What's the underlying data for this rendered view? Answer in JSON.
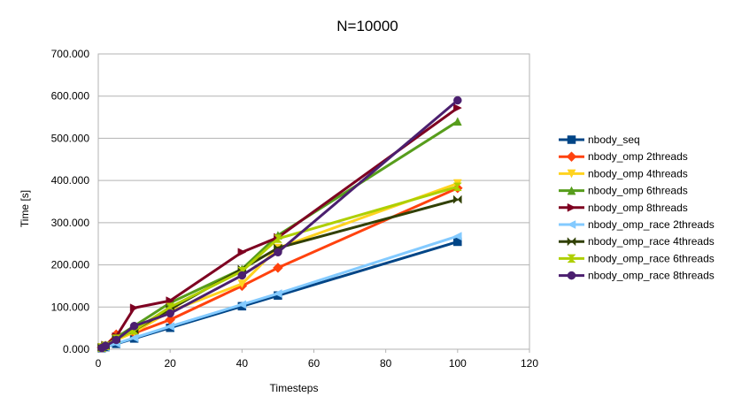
{
  "chart_data": {
    "type": "line",
    "title": "N=10000",
    "xlabel": "Timesteps",
    "ylabel": "Time [s]",
    "xlim": [
      0,
      120
    ],
    "ylim": [
      0,
      700
    ],
    "x_ticks": [
      "0",
      "20",
      "40",
      "60",
      "80",
      "100",
      "120"
    ],
    "y_ticks": [
      "0.000",
      "100.000",
      "200.000",
      "300.000",
      "400.000",
      "500.000",
      "600.000",
      "700.000"
    ],
    "grid": "horizontal",
    "legend_position": "right",
    "x": [
      1,
      2,
      5,
      10,
      20,
      40,
      50,
      100
    ],
    "series": [
      {
        "name": "nbody_seq",
        "color": "#004586",
        "marker": "square",
        "values": [
          2.6,
          5.1,
          12.7,
          25.4,
          50.9,
          101.9,
          127.3,
          254.7
        ]
      },
      {
        "name": "nbody_omp 2threads",
        "color": "#ff420e",
        "marker": "diamond",
        "values": [
          4,
          8,
          35,
          38,
          70,
          150,
          193,
          382
        ]
      },
      {
        "name": "nbody_omp 4threads",
        "color": "#ffd320",
        "marker": "triangle-down",
        "values": [
          4,
          8,
          22,
          40,
          90,
          155,
          240,
          393
        ]
      },
      {
        "name": "nbody_omp 6threads",
        "color": "#579d1c",
        "marker": "triangle-up",
        "values": [
          5,
          10,
          28,
          55,
          110,
          190,
          270,
          540
        ]
      },
      {
        "name": "nbody_omp 8threads",
        "color": "#7e0021",
        "marker": "triangle-right",
        "values": [
          5,
          10,
          30,
          98,
          115,
          230,
          265,
          572
        ]
      },
      {
        "name": "nbody_omp_race 2threads",
        "color": "#83caff",
        "marker": "triangle-left",
        "values": [
          2.7,
          5.3,
          13.5,
          27,
          54,
          106,
          132,
          268
        ]
      },
      {
        "name": "nbody_omp_race 4threads",
        "color": "#314004",
        "marker": "bowtie",
        "values": [
          5,
          9,
          25,
          45,
          95,
          190,
          240,
          355
        ]
      },
      {
        "name": "nbody_omp_race 6threads",
        "color": "#aecf00",
        "marker": "hourglass",
        "values": [
          4,
          8,
          25,
          45,
          100,
          185,
          262,
          385
        ]
      },
      {
        "name": "nbody_omp_race 8threads",
        "color": "#4b1f6f",
        "marker": "circle",
        "values": [
          3,
          8,
          22,
          55,
          85,
          175,
          230,
          590
        ]
      }
    ]
  }
}
